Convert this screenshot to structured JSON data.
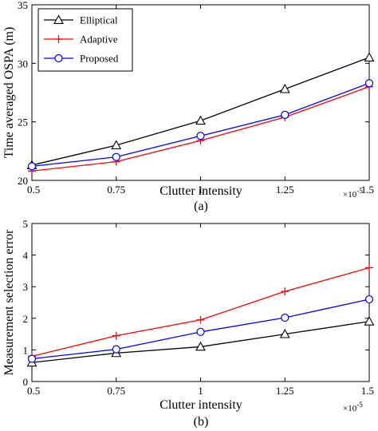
{
  "chart_data": [
    {
      "type": "line",
      "caption": "(a)",
      "xlabel": "Clutter intensity",
      "ylabel": "Time averaged OSPA (m)",
      "x": [
        0.5,
        0.75,
        1,
        1.25,
        1.5
      ],
      "x_tick_labels": [
        "0.5",
        "0.75",
        "1",
        "1.25",
        "1.5"
      ],
      "x_exponent": "×10",
      "x_exponent_power": "-5",
      "xlim": [
        0.5,
        1.5
      ],
      "ylim": [
        20,
        35
      ],
      "y_ticks": [
        20,
        25,
        30,
        35
      ],
      "legend_position": "top-left",
      "series": [
        {
          "name": "Elliptical",
          "color": "#000000",
          "marker": "triangle",
          "values": [
            21.3,
            23.0,
            25.1,
            27.8,
            30.5
          ]
        },
        {
          "name": "Adaptive",
          "color": "#ff0000",
          "marker": "plus",
          "values": [
            20.8,
            21.6,
            23.4,
            25.4,
            28.0
          ]
        },
        {
          "name": "Proposed",
          "color": "#0000ff",
          "marker": "circle",
          "values": [
            21.2,
            22.0,
            23.8,
            25.6,
            28.3
          ]
        }
      ]
    },
    {
      "type": "line",
      "caption": "(b)",
      "xlabel": "Clutter intensity",
      "ylabel": "Measurement selection error",
      "x": [
        0.5,
        0.75,
        1,
        1.25,
        1.5
      ],
      "x_tick_labels": [
        "0.5",
        "0.75",
        "1",
        "1.25",
        "1.5"
      ],
      "x_exponent": "×10",
      "x_exponent_power": "-5",
      "xlim": [
        0.5,
        1.5
      ],
      "ylim": [
        0,
        5
      ],
      "y_ticks": [
        0,
        1,
        2,
        3,
        4,
        5
      ],
      "series": [
        {
          "name": "Elliptical",
          "color": "#000000",
          "marker": "triangle",
          "values": [
            0.6,
            0.9,
            1.1,
            1.5,
            1.9
          ]
        },
        {
          "name": "Adaptive",
          "color": "#ff0000",
          "marker": "plus",
          "values": [
            0.8,
            1.45,
            1.95,
            2.85,
            3.6
          ]
        },
        {
          "name": "Proposed",
          "color": "#0000ff",
          "marker": "circle",
          "values": [
            0.72,
            1.02,
            1.57,
            2.02,
            2.6
          ]
        }
      ]
    }
  ]
}
